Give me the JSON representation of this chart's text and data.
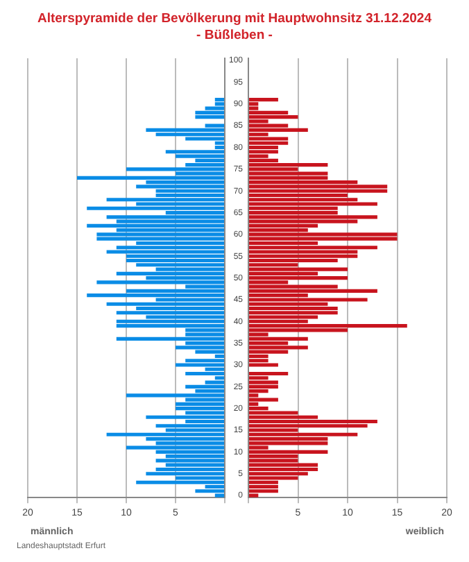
{
  "chart_data": [
    {
      "type": "bar",
      "orientation": "horizontal",
      "title": "Alterspyramide der Bevölkerung mit Hauptwohnsitz 31.12.2024",
      "subtitle": "- Büßleben -",
      "xlabel": "männlich",
      "annotations": [
        "Landeshauptstadt Erfurt"
      ],
      "categories": [
        "100",
        null,
        null,
        null,
        null,
        "95",
        null,
        null,
        null,
        null,
        "90",
        null,
        null,
        null,
        null,
        "85",
        null,
        null,
        null,
        null,
        "80",
        null,
        null,
        null,
        null,
        "75",
        null,
        null,
        null,
        null,
        "70",
        null,
        null,
        null,
        null,
        "65",
        null,
        null,
        null,
        null,
        "60",
        null,
        null,
        null,
        null,
        "55",
        null,
        null,
        null,
        null,
        "50",
        null,
        null,
        null,
        null,
        "45",
        null,
        null,
        null,
        null,
        "40",
        null,
        null,
        null,
        null,
        "35",
        null,
        null,
        null,
        null,
        "30",
        null,
        null,
        null,
        null,
        "25",
        null,
        null,
        null,
        null,
        "20",
        null,
        null,
        null,
        null,
        "15",
        null,
        null,
        null,
        null,
        "10",
        null,
        null,
        null,
        null,
        "5",
        null,
        null,
        null,
        null,
        "0"
      ],
      "xlim": [
        20,
        0
      ],
      "xticks": [
        20,
        15,
        10,
        5,
        {
          "value": 0,
          "label": null
        }
      ],
      "grid": "x",
      "tick_labels": "x",
      "series": [
        {
          "color": "#0a8ce6",
          "values": [
            0,
            0,
            0,
            0,
            0,
            0,
            0,
            0,
            0,
            1,
            1,
            2,
            3,
            3,
            0,
            2,
            8,
            7,
            4,
            1,
            1,
            6,
            5,
            3,
            4,
            10,
            5,
            15,
            8,
            9,
            7,
            7,
            12,
            9,
            14,
            6,
            12,
            11,
            14,
            11,
            13,
            13,
            9,
            11,
            12,
            10,
            10,
            9,
            7,
            11,
            8,
            13,
            4,
            10,
            14,
            7,
            12,
            9,
            11,
            8,
            11,
            11,
            4,
            4,
            11,
            4,
            5,
            3,
            1,
            4,
            5,
            2,
            4,
            1,
            2,
            4,
            3,
            10,
            4,
            5,
            5,
            4,
            8,
            4,
            7,
            6,
            12,
            8,
            7,
            10,
            7,
            6,
            7,
            6,
            7,
            8,
            5,
            9,
            2,
            3,
            1
          ]
        }
      ]
    },
    {
      "type": "bar",
      "orientation": "horizontal",
      "xlabel": "weiblich",
      "categories": [
        "100",
        null,
        null,
        null,
        null,
        "95",
        null,
        null,
        null,
        null,
        "90",
        null,
        null,
        null,
        null,
        "85",
        null,
        null,
        null,
        null,
        "80",
        null,
        null,
        null,
        null,
        "75",
        null,
        null,
        null,
        null,
        "70",
        null,
        null,
        null,
        null,
        "65",
        null,
        null,
        null,
        null,
        "60",
        null,
        null,
        null,
        null,
        "55",
        null,
        null,
        null,
        null,
        "50",
        null,
        null,
        null,
        null,
        "45",
        null,
        null,
        null,
        null,
        "40",
        null,
        null,
        null,
        null,
        "35",
        null,
        null,
        null,
        null,
        "30",
        null,
        null,
        null,
        null,
        "25",
        null,
        null,
        null,
        null,
        "20",
        null,
        null,
        null,
        null,
        "15",
        null,
        null,
        null,
        null,
        "10",
        null,
        null,
        null,
        null,
        "5",
        null,
        null,
        null,
        null,
        "0"
      ],
      "xlim": [
        0,
        20
      ],
      "xticks": [
        {
          "value": 0,
          "label": null
        },
        5,
        10,
        15,
        20
      ],
      "grid": "x",
      "series": [
        {
          "color": "#c8141e",
          "values": [
            0,
            0,
            0,
            0,
            0,
            0,
            0,
            0,
            0,
            3,
            1,
            1,
            4,
            5,
            2,
            4,
            6,
            2,
            4,
            4,
            3,
            3,
            2,
            3,
            8,
            5,
            8,
            8,
            11,
            14,
            14,
            10,
            11,
            13,
            9,
            9,
            13,
            11,
            7,
            6,
            15,
            15,
            7,
            13,
            11,
            11,
            9,
            5,
            10,
            7,
            10,
            4,
            9,
            13,
            6,
            12,
            8,
            9,
            9,
            7,
            6,
            16,
            10,
            2,
            6,
            4,
            6,
            4,
            2,
            2,
            3,
            0,
            4,
            2,
            3,
            3,
            2,
            1,
            3,
            1,
            2,
            5,
            7,
            13,
            12,
            5,
            11,
            8,
            8,
            2,
            8,
            5,
            5,
            7,
            7,
            6,
            5,
            3,
            3,
            3,
            1
          ]
        }
      ]
    }
  ]
}
